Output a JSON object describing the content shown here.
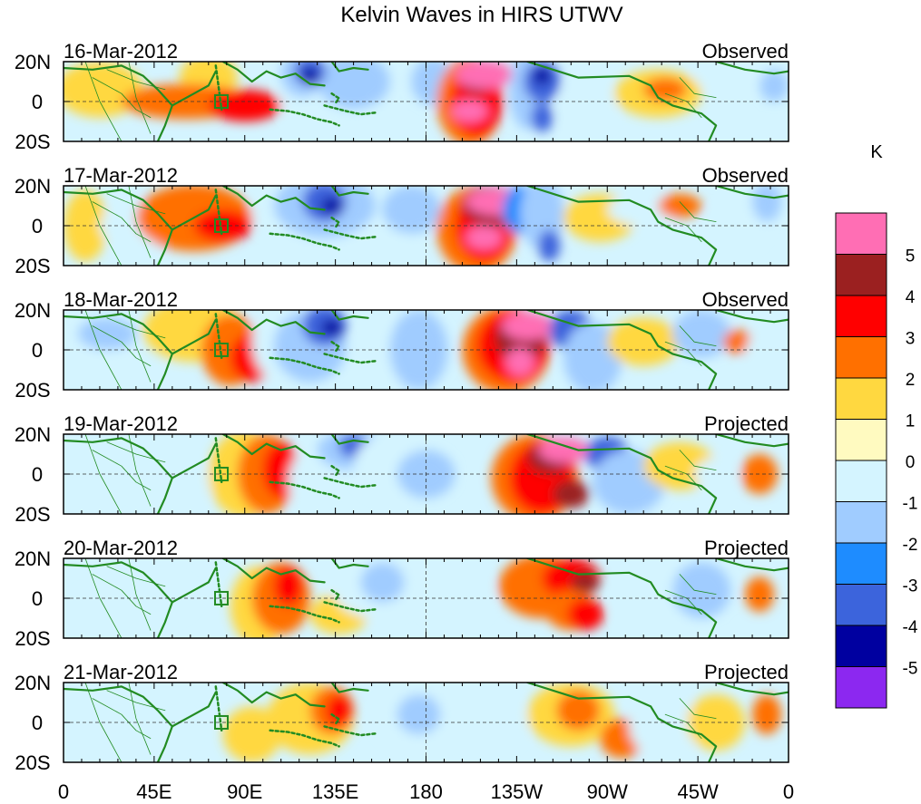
{
  "title": "Kelvin Waves in HIRS UTWV",
  "colorbar": {
    "unit": "K",
    "levels": [
      {
        "label": "5",
        "color": "#ff6eb4"
      },
      {
        "label": "4",
        "color": "#9b2020"
      },
      {
        "label": "3",
        "color": "#ff0000"
      },
      {
        "label": "2",
        "color": "#ff7000"
      },
      {
        "label": "1",
        "color": "#ffd840"
      },
      {
        "label": "0",
        "color": "#fffac0"
      },
      {
        "label": "-1",
        "color": "#d4f4ff"
      },
      {
        "label": "-2",
        "color": "#a0ccff"
      },
      {
        "label": "-3",
        "color": "#1e8cff"
      },
      {
        "label": "-4",
        "color": "#3c64dc"
      },
      {
        "label": "-5",
        "color": "#0000a0"
      }
    ],
    "bottom_color": "#8c28f0"
  },
  "panels": [
    {
      "date": "16-Mar-2012",
      "status": "Observed"
    },
    {
      "date": "17-Mar-2012",
      "status": "Observed"
    },
    {
      "date": "18-Mar-2012",
      "status": "Observed"
    },
    {
      "date": "19-Mar-2012",
      "status": "Projected"
    },
    {
      "date": "20-Mar-2012",
      "status": "Projected"
    },
    {
      "date": "21-Mar-2012",
      "status": "Projected"
    }
  ],
  "lat_labels": [
    "20N",
    "0",
    "20S"
  ],
  "lon_labels": [
    "0",
    "45E",
    "90E",
    "135E",
    "180",
    "135W",
    "90W",
    "45W",
    "0"
  ],
  "coastline_color": "#228b22"
}
